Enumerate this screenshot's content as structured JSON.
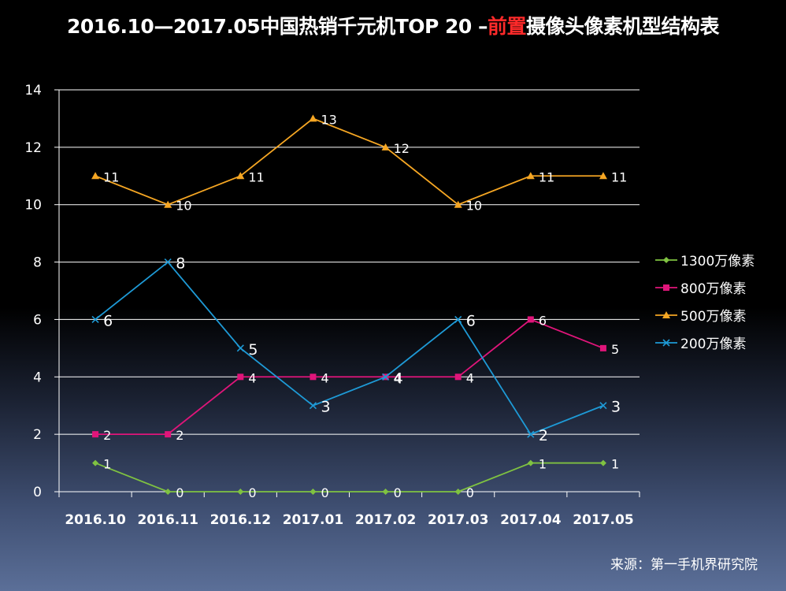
{
  "title": {
    "prefix": "2016.10—2017.05中国热销千元机TOP 20 –",
    "highlight": "前置",
    "suffix": "摄像头像素机型结构表"
  },
  "source": "来源：第一手机界研究院",
  "colors": {
    "s1300": "#7fc241",
    "s800": "#e0157a",
    "s500": "#f5a623",
    "s200": "#1e9ad6"
  },
  "chart_data": {
    "type": "line",
    "categories": [
      "2016.10",
      "2016.11",
      "2016.12",
      "2017.01",
      "2017.02",
      "2017.03",
      "2017.04",
      "2017.05"
    ],
    "ylim": [
      0,
      14
    ],
    "yticks": [
      "0",
      "2",
      "4",
      "6",
      "8",
      "10",
      "12",
      "14"
    ],
    "grid": true,
    "legend_position": "right",
    "series": [
      {
        "name": "1300万像素",
        "key": "s1300",
        "marker": "diamond",
        "values": [
          1,
          0,
          0,
          0,
          0,
          0,
          1,
          1
        ],
        "labels": [
          "1",
          "0",
          "0",
          "0",
          "0",
          "0",
          "1",
          "1"
        ]
      },
      {
        "name": "800万像素",
        "key": "s800",
        "marker": "square",
        "values": [
          2,
          2,
          4,
          4,
          4,
          4,
          6,
          5
        ],
        "labels": [
          "2",
          "2",
          "4",
          "4",
          "4",
          "4",
          "6",
          "5"
        ]
      },
      {
        "name": "500万像素",
        "key": "s500",
        "marker": "triangle",
        "values": [
          11,
          10,
          11,
          13,
          12,
          10,
          11,
          11
        ],
        "labels": [
          "11",
          "10",
          "11",
          "13",
          "12",
          "10",
          "11",
          "11"
        ]
      },
      {
        "name": "200万像素",
        "key": "s200",
        "marker": "x",
        "values": [
          6,
          8,
          5,
          3,
          4,
          6,
          2,
          3
        ],
        "labels": [
          "6",
          "8",
          "5",
          "3",
          "4",
          "6",
          "2",
          "3"
        ]
      }
    ]
  }
}
